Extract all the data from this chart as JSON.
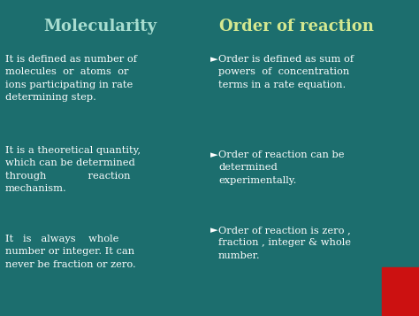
{
  "bg_color": "#1c6e6e",
  "title_left": "Molecularity",
  "title_right": "Order of reaction",
  "title_left_color": "#a8ddd0",
  "title_right_color": "#d4e890",
  "title_fontsize": 13,
  "content_color": "#ffffff",
  "content_fontsize": 8.2,
  "red_box_color": "#cc1111",
  "left_points": [
    "It is defined as number of\nmolecules  or  atoms  or\nions participating in rate\ndetermining step.",
    "It is a theoretical quantity,\nwhich can be determined\nthrough             reaction\nmechanism.",
    "It   is   always    whole\nnumber or integer. It can\nnever be fraction or zero."
  ],
  "right_points": [
    "Order is defined as sum of\npowers  of  concentration\nterms in a rate equation.",
    "Order of reaction can be\ndetermined\nexperimentally.",
    "Order of reaction is zero ,\nfraction , integer & whole\nnumber."
  ],
  "bullet": "►"
}
